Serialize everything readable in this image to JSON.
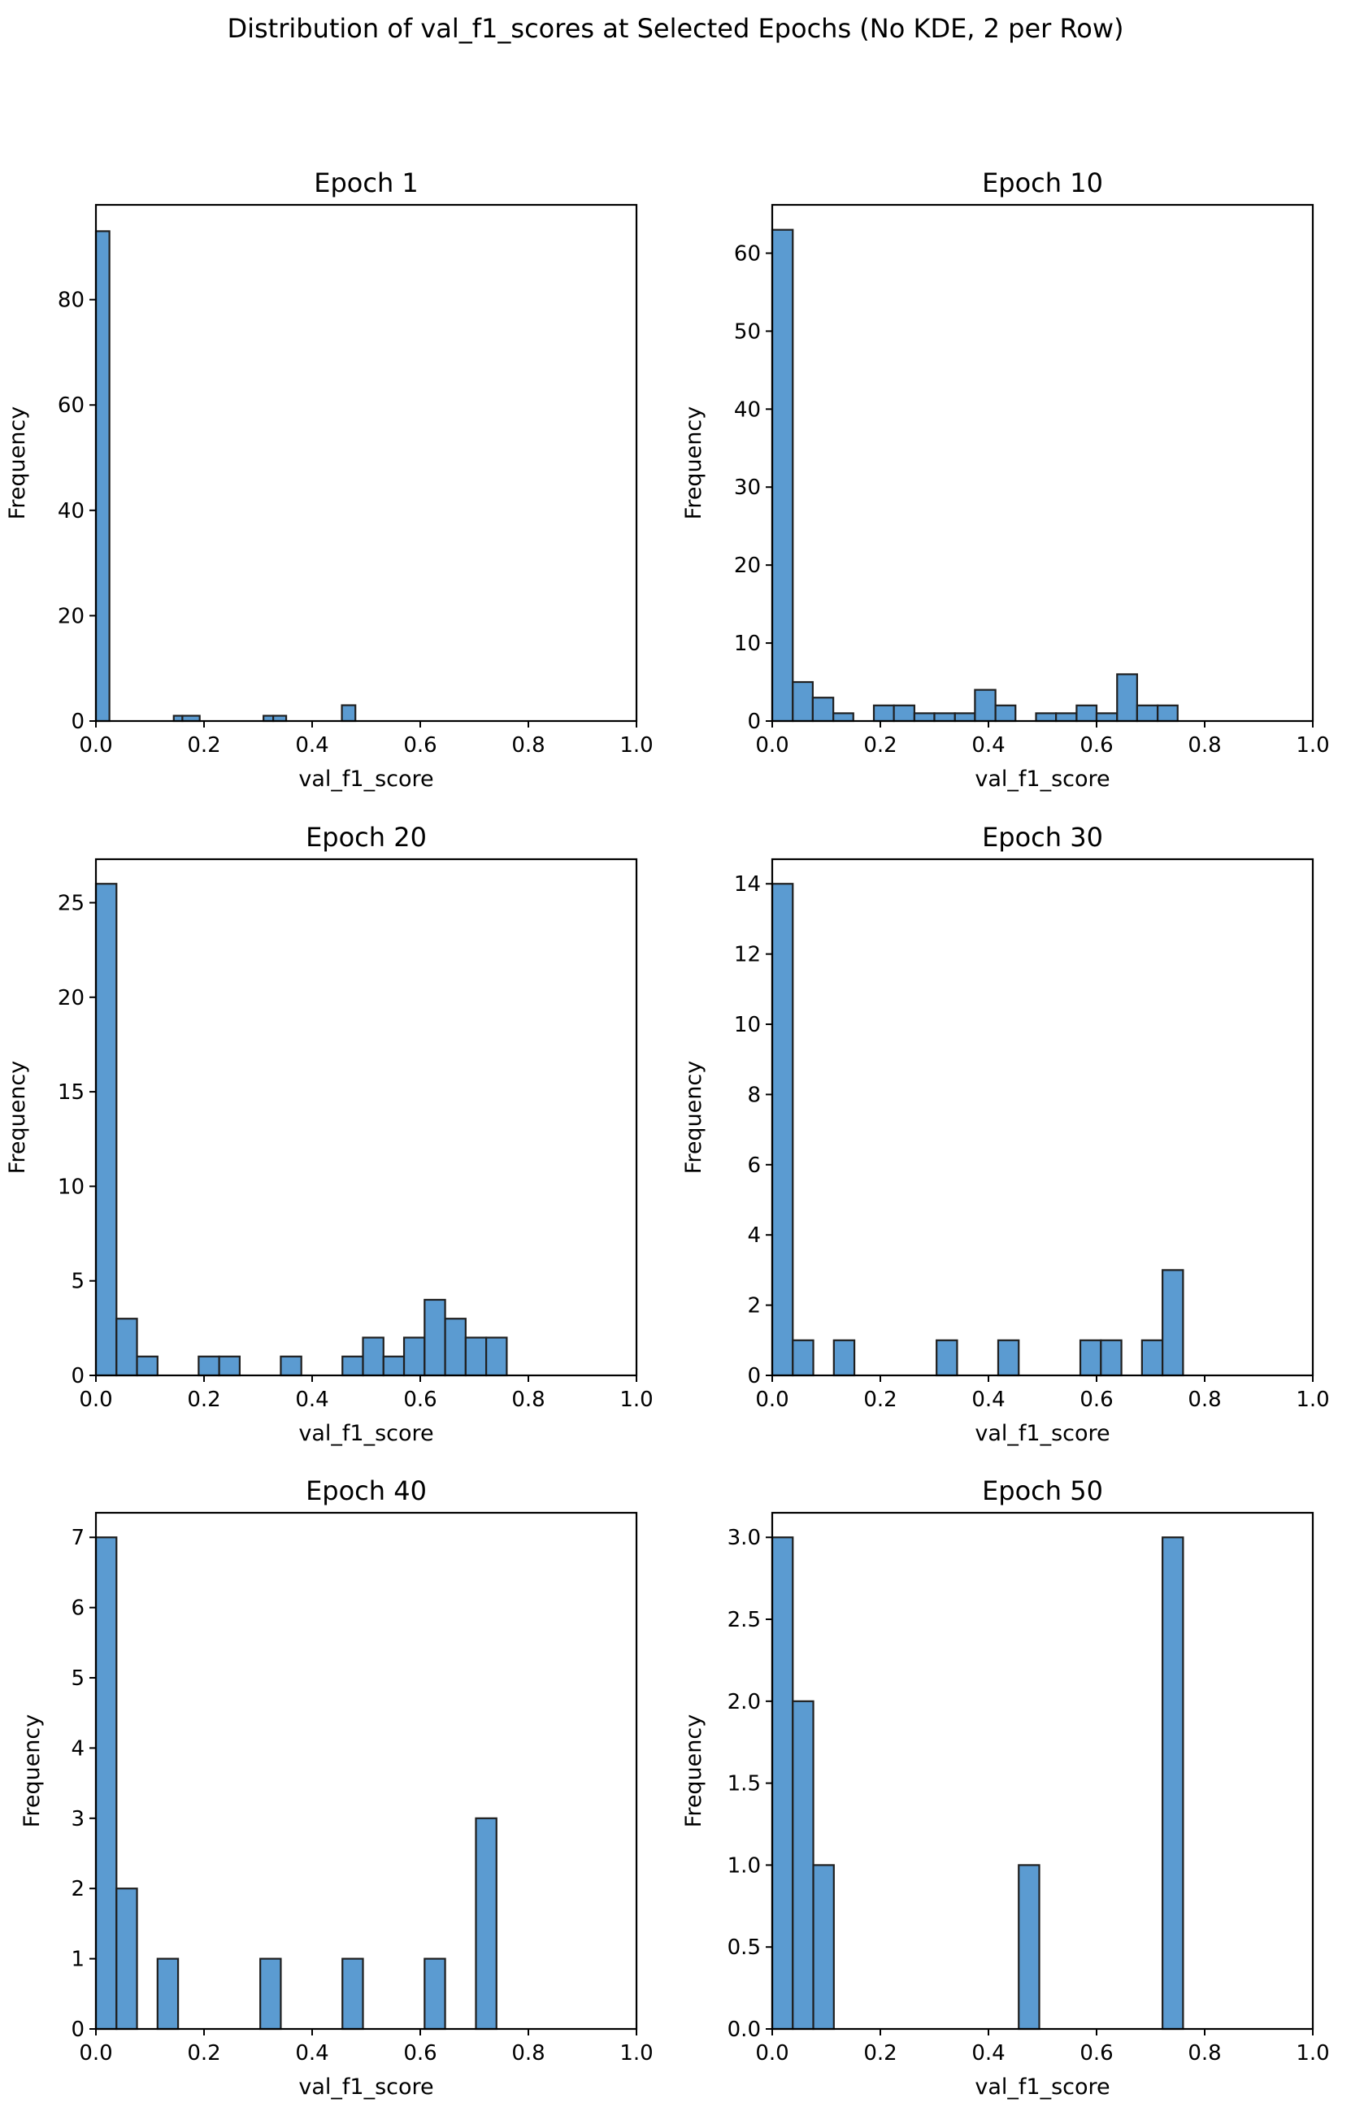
{
  "figure": {
    "title": "Distribution of val_f1_scores at Selected Epochs (No KDE, 2 per Row)"
  },
  "chart_data": [
    {
      "type": "bar",
      "title": "Epoch 1",
      "xlabel": "val_f1_score",
      "ylabel": "Frequency",
      "xlim": [
        0.0,
        1.0
      ],
      "ylim": [
        0,
        98
      ],
      "xticks": [
        "0.0",
        "0.2",
        "0.4",
        "0.6",
        "0.8",
        "1.0"
      ],
      "yticks": [
        "0",
        "20",
        "40",
        "60",
        "80"
      ],
      "bars": [
        {
          "x0": 0.0,
          "x1": 0.025,
          "value": 93
        },
        {
          "x0": 0.144,
          "x1": 0.16,
          "value": 1
        },
        {
          "x0": 0.16,
          "x1": 0.192,
          "value": 1
        },
        {
          "x0": 0.31,
          "x1": 0.328,
          "value": 1
        },
        {
          "x0": 0.328,
          "x1": 0.352,
          "value": 1
        },
        {
          "x0": 0.455,
          "x1": 0.48,
          "value": 3
        }
      ],
      "color": "#5b9bd1"
    },
    {
      "type": "bar",
      "title": "Epoch 10",
      "xlabel": "val_f1_score",
      "ylabel": "Frequency",
      "xlim": [
        0.0,
        1.0
      ],
      "ylim": [
        0,
        66.2
      ],
      "xticks": [
        "0.0",
        "0.2",
        "0.4",
        "0.6",
        "0.8",
        "1.0"
      ],
      "yticks": [
        "0",
        "10",
        "20",
        "30",
        "40",
        "50",
        "60"
      ],
      "bars": [
        {
          "x0": 0.0,
          "x1": 0.038,
          "value": 63
        },
        {
          "x0": 0.038,
          "x1": 0.075,
          "value": 5
        },
        {
          "x0": 0.075,
          "x1": 0.113,
          "value": 3
        },
        {
          "x0": 0.113,
          "x1": 0.15,
          "value": 1
        },
        {
          "x0": 0.188,
          "x1": 0.225,
          "value": 2
        },
        {
          "x0": 0.225,
          "x1": 0.263,
          "value": 2
        },
        {
          "x0": 0.263,
          "x1": 0.3,
          "value": 1
        },
        {
          "x0": 0.3,
          "x1": 0.338,
          "value": 1
        },
        {
          "x0": 0.338,
          "x1": 0.375,
          "value": 1
        },
        {
          "x0": 0.375,
          "x1": 0.413,
          "value": 4
        },
        {
          "x0": 0.413,
          "x1": 0.45,
          "value": 2
        },
        {
          "x0": 0.488,
          "x1": 0.525,
          "value": 1
        },
        {
          "x0": 0.525,
          "x1": 0.563,
          "value": 1
        },
        {
          "x0": 0.563,
          "x1": 0.6,
          "value": 2
        },
        {
          "x0": 0.6,
          "x1": 0.638,
          "value": 1
        },
        {
          "x0": 0.638,
          "x1": 0.675,
          "value": 6
        },
        {
          "x0": 0.675,
          "x1": 0.713,
          "value": 2
        },
        {
          "x0": 0.713,
          "x1": 0.75,
          "value": 2
        }
      ],
      "color": "#5b9bd1"
    },
    {
      "type": "bar",
      "title": "Epoch 20",
      "xlabel": "val_f1_score",
      "ylabel": "Frequency",
      "xlim": [
        0.0,
        1.0
      ],
      "ylim": [
        0,
        27.3
      ],
      "xticks": [
        "0.0",
        "0.2",
        "0.4",
        "0.6",
        "0.8",
        "1.0"
      ],
      "yticks": [
        "0",
        "5",
        "10",
        "15",
        "20",
        "25"
      ],
      "bars": [
        {
          "x0": 0.0,
          "x1": 0.038,
          "value": 26
        },
        {
          "x0": 0.038,
          "x1": 0.076,
          "value": 3
        },
        {
          "x0": 0.076,
          "x1": 0.114,
          "value": 1
        },
        {
          "x0": 0.19,
          "x1": 0.228,
          "value": 1
        },
        {
          "x0": 0.228,
          "x1": 0.266,
          "value": 1
        },
        {
          "x0": 0.342,
          "x1": 0.38,
          "value": 1
        },
        {
          "x0": 0.456,
          "x1": 0.494,
          "value": 1
        },
        {
          "x0": 0.494,
          "x1": 0.532,
          "value": 2
        },
        {
          "x0": 0.532,
          "x1": 0.57,
          "value": 1
        },
        {
          "x0": 0.57,
          "x1": 0.608,
          "value": 2
        },
        {
          "x0": 0.608,
          "x1": 0.646,
          "value": 4
        },
        {
          "x0": 0.646,
          "x1": 0.684,
          "value": 3
        },
        {
          "x0": 0.684,
          "x1": 0.722,
          "value": 2
        },
        {
          "x0": 0.722,
          "x1": 0.76,
          "value": 2
        }
      ],
      "color": "#5b9bd1"
    },
    {
      "type": "bar",
      "title": "Epoch 30",
      "xlabel": "val_f1_score",
      "ylabel": "Frequency",
      "xlim": [
        0.0,
        1.0
      ],
      "ylim": [
        0,
        14.7
      ],
      "xticks": [
        "0.0",
        "0.2",
        "0.4",
        "0.6",
        "0.8",
        "1.0"
      ],
      "yticks": [
        "0",
        "2",
        "4",
        "6",
        "8",
        "10",
        "12",
        "14"
      ],
      "bars": [
        {
          "x0": 0.0,
          "x1": 0.038,
          "value": 14
        },
        {
          "x0": 0.038,
          "x1": 0.076,
          "value": 1
        },
        {
          "x0": 0.114,
          "x1": 0.152,
          "value": 1
        },
        {
          "x0": 0.304,
          "x1": 0.342,
          "value": 1
        },
        {
          "x0": 0.418,
          "x1": 0.456,
          "value": 1
        },
        {
          "x0": 0.57,
          "x1": 0.608,
          "value": 1
        },
        {
          "x0": 0.608,
          "x1": 0.646,
          "value": 1
        },
        {
          "x0": 0.684,
          "x1": 0.722,
          "value": 1
        },
        {
          "x0": 0.722,
          "x1": 0.76,
          "value": 3
        }
      ],
      "color": "#5b9bd1"
    },
    {
      "type": "bar",
      "title": "Epoch 40",
      "xlabel": "val_f1_score",
      "ylabel": "Frequency",
      "xlim": [
        0.0,
        1.0
      ],
      "ylim": [
        0,
        7.35
      ],
      "xticks": [
        "0.0",
        "0.2",
        "0.4",
        "0.6",
        "0.8",
        "1.0"
      ],
      "yticks": [
        "0",
        "1",
        "2",
        "3",
        "4",
        "5",
        "6",
        "7"
      ],
      "bars": [
        {
          "x0": 0.0,
          "x1": 0.038,
          "value": 7
        },
        {
          "x0": 0.038,
          "x1": 0.076,
          "value": 2
        },
        {
          "x0": 0.114,
          "x1": 0.152,
          "value": 1
        },
        {
          "x0": 0.304,
          "x1": 0.342,
          "value": 1
        },
        {
          "x0": 0.456,
          "x1": 0.494,
          "value": 1
        },
        {
          "x0": 0.608,
          "x1": 0.646,
          "value": 1
        },
        {
          "x0": 0.703,
          "x1": 0.741,
          "value": 3
        }
      ],
      "color": "#5b9bd1"
    },
    {
      "type": "bar",
      "title": "Epoch 50",
      "xlabel": "val_f1_score",
      "ylabel": "Frequency",
      "xlim": [
        0.0,
        1.0
      ],
      "ylim": [
        0,
        3.15
      ],
      "xticks": [
        "0.0",
        "0.2",
        "0.4",
        "0.6",
        "0.8",
        "1.0"
      ],
      "yticks": [
        "0.0",
        "0.5",
        "1.0",
        "1.5",
        "2.0",
        "2.5",
        "3.0"
      ],
      "bars": [
        {
          "x0": 0.0,
          "x1": 0.038,
          "value": 3
        },
        {
          "x0": 0.038,
          "x1": 0.076,
          "value": 2
        },
        {
          "x0": 0.076,
          "x1": 0.114,
          "value": 1
        },
        {
          "x0": 0.456,
          "x1": 0.494,
          "value": 1
        },
        {
          "x0": 0.722,
          "x1": 0.76,
          "value": 3
        }
      ],
      "color": "#5b9bd1"
    }
  ]
}
